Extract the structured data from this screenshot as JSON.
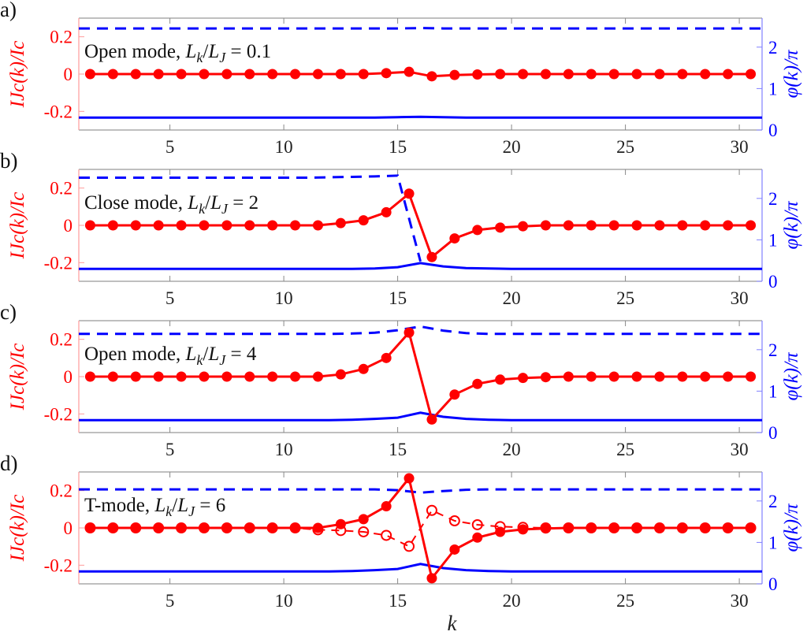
{
  "chart_data": [
    {
      "type": "line",
      "panel_label": "a)",
      "annotation": {
        "prefix": "Open mode, ",
        "value": " = 0.1"
      },
      "xlabel": "",
      "ylabel_left": "I_Jc(k)/I_c",
      "ylabel_right": "φ(k)/π",
      "xlim": [
        1,
        31
      ],
      "ylim_left": [
        -0.3,
        0.3
      ],
      "ylim_right": [
        0,
        2.7
      ],
      "xticks": [
        5,
        10,
        15,
        20,
        25,
        30
      ],
      "yticks_left": [
        {
          "v": 0.2,
          "t": "0.2"
        },
        {
          "v": 0,
          "t": "0"
        },
        {
          "v": -0.2,
          "t": "-0.2"
        }
      ],
      "yticks_right": [
        {
          "v": 0,
          "t": "0"
        },
        {
          "v": 1,
          "t": "1"
        },
        {
          "v": 2,
          "t": "2"
        }
      ],
      "k_markers": [
        1.5,
        2.5,
        3.5,
        4.5,
        5.5,
        6.5,
        7.5,
        8.5,
        9.5,
        10.5,
        11.5,
        12.5,
        13.5,
        14.5,
        15.5,
        16.5,
        17.5,
        18.5,
        19.5,
        20.5,
        21.5,
        22.5,
        23.5,
        24.5,
        25.5,
        26.5,
        27.5,
        28.5,
        29.5,
        30.5
      ],
      "current_filled": [
        0,
        0,
        0,
        0,
        0,
        0,
        0,
        0,
        0,
        0,
        0,
        0,
        0,
        0.005,
        0.012,
        -0.012,
        -0.005,
        -0.002,
        0,
        0,
        0,
        0,
        0,
        0,
        0,
        0,
        0,
        0,
        0,
        0
      ],
      "current_hollow": null,
      "k_phase": [
        1,
        2,
        3,
        4,
        5,
        6,
        7,
        8,
        9,
        10,
        11,
        12,
        13,
        14,
        15,
        16,
        17,
        18,
        19,
        20,
        21,
        22,
        23,
        24,
        25,
        26,
        27,
        28,
        29,
        30,
        31
      ],
      "phase_solid": [
        0.3,
        0.3,
        0.3,
        0.3,
        0.3,
        0.3,
        0.3,
        0.3,
        0.3,
        0.3,
        0.3,
        0.3,
        0.3,
        0.3,
        0.31,
        0.32,
        0.31,
        0.3,
        0.3,
        0.3,
        0.3,
        0.3,
        0.3,
        0.3,
        0.3,
        0.3,
        0.3,
        0.3,
        0.3,
        0.3,
        0.3
      ],
      "phase_dashed": [
        2.45,
        2.45,
        2.45,
        2.45,
        2.45,
        2.45,
        2.45,
        2.45,
        2.45,
        2.45,
        2.45,
        2.45,
        2.45,
        2.45,
        2.45,
        2.46,
        2.45,
        2.45,
        2.45,
        2.45,
        2.45,
        2.45,
        2.45,
        2.45,
        2.45,
        2.45,
        2.45,
        2.45,
        2.45,
        2.45,
        2.45
      ]
    },
    {
      "type": "line",
      "panel_label": "b)",
      "annotation": {
        "prefix": "Close mode, ",
        "value": " = 2"
      },
      "xlabel": "",
      "ylabel_left": "I_Jc(k)/I_c",
      "ylabel_right": "φ(k)/π",
      "xlim": [
        1,
        31
      ],
      "ylim_left": [
        -0.3,
        0.3
      ],
      "ylim_right": [
        0,
        2.7
      ],
      "xticks": [
        5,
        10,
        15,
        20,
        25,
        30
      ],
      "yticks_left": [
        {
          "v": 0.2,
          "t": "0.2"
        },
        {
          "v": 0,
          "t": "0"
        },
        {
          "v": -0.2,
          "t": "-0.2"
        }
      ],
      "yticks_right": [
        {
          "v": 0,
          "t": "0"
        },
        {
          "v": 1,
          "t": "1"
        },
        {
          "v": 2,
          "t": "2"
        }
      ],
      "k_markers": [
        1.5,
        2.5,
        3.5,
        4.5,
        5.5,
        6.5,
        7.5,
        8.5,
        9.5,
        10.5,
        11.5,
        12.5,
        13.5,
        14.5,
        15.5,
        16.5,
        17.5,
        18.5,
        19.5,
        20.5,
        21.5,
        22.5,
        23.5,
        24.5,
        25.5,
        26.5,
        27.5,
        28.5,
        29.5,
        30.5
      ],
      "current_filled": [
        0,
        0,
        0,
        0,
        0,
        0,
        0,
        0,
        0,
        0,
        0,
        0.012,
        0.027,
        0.07,
        0.17,
        -0.17,
        -0.07,
        -0.025,
        -0.012,
        -0.005,
        0,
        0,
        0,
        0,
        0,
        0,
        0,
        0,
        0,
        0
      ],
      "current_hollow": null,
      "k_phase": [
        1,
        2,
        3,
        4,
        5,
        6,
        7,
        8,
        9,
        10,
        11,
        12,
        13,
        14,
        15,
        16,
        17,
        18,
        19,
        20,
        21,
        22,
        23,
        24,
        25,
        26,
        27,
        28,
        29,
        30,
        31
      ],
      "phase_solid": [
        0.3,
        0.3,
        0.3,
        0.3,
        0.3,
        0.3,
        0.3,
        0.3,
        0.3,
        0.3,
        0.3,
        0.3,
        0.3,
        0.31,
        0.34,
        0.44,
        0.36,
        0.32,
        0.31,
        0.3,
        0.3,
        0.3,
        0.3,
        0.3,
        0.3,
        0.3,
        0.3,
        0.3,
        0.3,
        0.3,
        0.3
      ],
      "phase_dashed": [
        2.5,
        2.5,
        2.5,
        2.5,
        2.5,
        2.5,
        2.5,
        2.5,
        2.5,
        2.5,
        2.5,
        2.51,
        2.52,
        2.53,
        2.55,
        0.48,
        null,
        null,
        null,
        null,
        null,
        null,
        null,
        null,
        null,
        null,
        null,
        null,
        null,
        null,
        null
      ]
    },
    {
      "type": "line",
      "panel_label": "c)",
      "annotation": {
        "prefix": "Open mode, ",
        "value": " = 4"
      },
      "xlabel": "",
      "ylabel_left": "I_Jc(k)/I_c",
      "ylabel_right": "φ(k)/π",
      "xlim": [
        1,
        31
      ],
      "ylim_left": [
        -0.3,
        0.3
      ],
      "ylim_right": [
        0,
        2.7
      ],
      "xticks": [
        5,
        10,
        15,
        20,
        25,
        30
      ],
      "yticks_left": [
        {
          "v": 0.2,
          "t": "0.2"
        },
        {
          "v": 0,
          "t": "0"
        },
        {
          "v": -0.2,
          "t": "-0.2"
        }
      ],
      "yticks_right": [
        {
          "v": 0,
          "t": "0"
        },
        {
          "v": 1,
          "t": "1"
        },
        {
          "v": 2,
          "t": "2"
        }
      ],
      "k_markers": [
        1.5,
        2.5,
        3.5,
        4.5,
        5.5,
        6.5,
        7.5,
        8.5,
        9.5,
        10.5,
        11.5,
        12.5,
        13.5,
        14.5,
        15.5,
        16.5,
        17.5,
        18.5,
        19.5,
        20.5,
        21.5,
        22.5,
        23.5,
        24.5,
        25.5,
        26.5,
        27.5,
        28.5,
        29.5,
        30.5
      ],
      "current_filled": [
        0,
        0,
        0,
        0,
        0,
        0,
        0,
        0,
        0,
        0,
        0,
        0.012,
        0.041,
        0.1,
        0.236,
        -0.23,
        -0.096,
        -0.039,
        -0.016,
        -0.007,
        -0.003,
        0,
        0,
        0,
        0,
        0,
        0,
        0,
        0,
        0
      ],
      "current_hollow": null,
      "k_phase": [
        1,
        2,
        3,
        4,
        5,
        6,
        7,
        8,
        9,
        10,
        11,
        12,
        13,
        14,
        15,
        16,
        17,
        18,
        19,
        20,
        21,
        22,
        23,
        24,
        25,
        26,
        27,
        28,
        29,
        30,
        31
      ],
      "phase_solid": [
        0.3,
        0.3,
        0.3,
        0.3,
        0.3,
        0.3,
        0.3,
        0.3,
        0.3,
        0.3,
        0.3,
        0.3,
        0.31,
        0.33,
        0.36,
        0.48,
        0.38,
        0.33,
        0.31,
        0.3,
        0.3,
        0.3,
        0.3,
        0.3,
        0.3,
        0.3,
        0.3,
        0.3,
        0.3,
        0.3,
        0.3
      ],
      "phase_dashed": [
        2.38,
        2.38,
        2.38,
        2.38,
        2.38,
        2.38,
        2.38,
        2.38,
        2.38,
        2.38,
        2.38,
        2.38,
        2.39,
        2.41,
        2.47,
        2.56,
        2.46,
        2.4,
        2.38,
        2.38,
        2.38,
        2.38,
        2.38,
        2.38,
        2.38,
        2.38,
        2.38,
        2.38,
        2.38,
        2.38,
        2.38
      ]
    },
    {
      "type": "line",
      "panel_label": "d)",
      "annotation": {
        "prefix": "T-mode, ",
        "value": " = 6"
      },
      "xlabel": "k",
      "ylabel_left": "I_Jc(k)/I_c",
      "ylabel_right": "φ(k)/π",
      "xlim": [
        1,
        31
      ],
      "ylim_left": [
        -0.3,
        0.3
      ],
      "ylim_right": [
        0,
        2.7
      ],
      "xticks": [
        5,
        10,
        15,
        20,
        25,
        30
      ],
      "yticks_left": [
        {
          "v": 0.2,
          "t": "0.2"
        },
        {
          "v": 0,
          "t": "0"
        },
        {
          "v": -0.2,
          "t": "-0.2"
        }
      ],
      "yticks_right": [
        {
          "v": 0,
          "t": "0"
        },
        {
          "v": 1,
          "t": "1"
        },
        {
          "v": 2,
          "t": "2"
        }
      ],
      "k_markers": [
        1.5,
        2.5,
        3.5,
        4.5,
        5.5,
        6.5,
        7.5,
        8.5,
        9.5,
        10.5,
        11.5,
        12.5,
        13.5,
        14.5,
        15.5,
        16.5,
        17.5,
        18.5,
        19.5,
        20.5,
        21.5,
        22.5,
        23.5,
        24.5,
        25.5,
        26.5,
        27.5,
        28.5,
        29.5,
        30.5
      ],
      "current_filled": [
        0,
        0,
        0,
        0,
        0,
        0,
        0,
        0,
        0,
        0,
        0,
        0.02,
        0.047,
        0.116,
        0.266,
        -0.27,
        -0.116,
        -0.052,
        -0.021,
        -0.008,
        -0.003,
        0,
        0,
        0,
        0,
        0,
        0,
        0,
        0,
        0
      ],
      "current_hollow": [
        0,
        0,
        0,
        0,
        0,
        0,
        0,
        0,
        0,
        0,
        -0.01,
        -0.014,
        -0.021,
        -0.04,
        -0.099,
        0.094,
        0.038,
        0.017,
        0.007,
        0.003,
        0,
        0,
        0,
        0,
        0,
        0,
        0,
        0,
        0,
        0
      ],
      "k_phase": [
        1,
        2,
        3,
        4,
        5,
        6,
        7,
        8,
        9,
        10,
        11,
        12,
        13,
        14,
        15,
        16,
        17,
        18,
        19,
        20,
        21,
        22,
        23,
        24,
        25,
        26,
        27,
        28,
        29,
        30,
        31
      ],
      "phase_solid": [
        0.3,
        0.3,
        0.3,
        0.3,
        0.3,
        0.3,
        0.3,
        0.3,
        0.3,
        0.3,
        0.3,
        0.3,
        0.31,
        0.33,
        0.36,
        0.48,
        0.38,
        0.33,
        0.31,
        0.3,
        0.3,
        0.3,
        0.3,
        0.3,
        0.3,
        0.3,
        0.3,
        0.3,
        0.3,
        0.3,
        0.3
      ],
      "phase_dashed": [
        2.28,
        2.28,
        2.28,
        2.28,
        2.28,
        2.28,
        2.28,
        2.28,
        2.28,
        2.28,
        2.28,
        2.28,
        2.28,
        2.28,
        2.26,
        2.2,
        2.24,
        2.27,
        2.28,
        2.28,
        2.28,
        2.28,
        2.28,
        2.28,
        2.28,
        2.28,
        2.28,
        2.28,
        2.28,
        2.28,
        2.28
      ]
    }
  ],
  "colors": {
    "current": "#ff0000",
    "phase": "#0000ff",
    "axis": "#888888"
  },
  "annotation_symbol": {
    "L": "L",
    "k": "k",
    "J": "J"
  }
}
